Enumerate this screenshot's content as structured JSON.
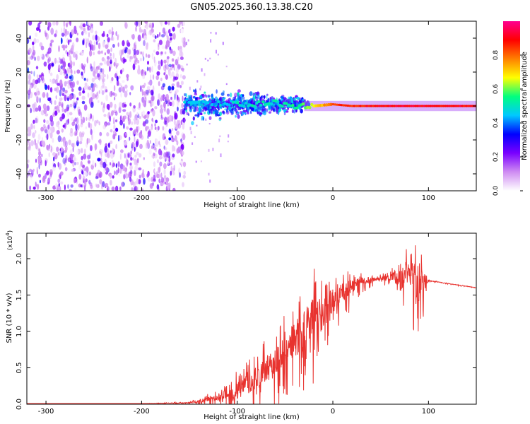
{
  "title": "GN05.2025.360.13.38.C20",
  "colors": {
    "line": "#e8332f",
    "background": "#ffffff",
    "axis": "#000000",
    "colormap": [
      "#ffffff",
      "#cf8cf2",
      "#7a00ff",
      "#0000ff",
      "#00c8ff",
      "#00ff7f",
      "#ffff00",
      "#ff8000",
      "#ff0000",
      "#ff0090"
    ]
  },
  "chart_data": [
    {
      "type": "heatmap",
      "name": "spectrogram",
      "xlabel": "Height of straight line (km)",
      "ylabel": "Frequency (Hz)",
      "xlim": [
        -320,
        150
      ],
      "ylim": [
        -50,
        50
      ],
      "xticks": [
        -300,
        -200,
        -100,
        0,
        100
      ],
      "xtick_labels": [
        "-300",
        "-200",
        "-100",
        "0",
        "100"
      ],
      "yticks": [
        -40,
        -20,
        0,
        20,
        40
      ],
      "ytick_labels": [
        "-40",
        "-20",
        "0",
        "20",
        "40"
      ],
      "noise_region": {
        "x": [
          -320,
          -155
        ],
        "y": [
          -50,
          50
        ],
        "amplitude": [
          0.0,
          0.3
        ]
      },
      "transition_region": {
        "x": [
          -155,
          -25
        ],
        "y": [
          -10,
          12
        ],
        "amplitude": [
          0.2,
          0.5
        ]
      },
      "ridge": {
        "description": "narrow band near 0 Hz",
        "x": [
          -155,
          -120,
          -90,
          -60,
          -40,
          -20,
          0,
          20,
          60,
          100,
          150
        ],
        "freq": [
          3,
          2,
          1,
          2,
          0,
          0,
          1,
          0,
          0,
          0,
          0
        ],
        "amplitude": [
          0.45,
          0.45,
          0.5,
          0.5,
          0.55,
          0.65,
          0.85,
          0.85,
          0.9,
          0.9,
          0.9
        ]
      },
      "colorbar": {
        "label": "Normalized spectral amplitude",
        "range": [
          0,
          1
        ],
        "ticks": [
          0.0,
          0.2,
          0.4,
          0.6,
          0.8
        ],
        "tick_labels": [
          "0.0",
          "0.2",
          "0.4",
          "0.6",
          "0.8"
        ]
      }
    },
    {
      "type": "line",
      "name": "snr",
      "xlabel": "Height of straight line (km)",
      "ylabel": "SNR (10 * v/v)",
      "scale_label": "(x10",
      "scale_exponent": "4",
      "xlim": [
        -320,
        150
      ],
      "ylim": [
        0,
        2.35
      ],
      "xticks": [
        -300,
        -200,
        -100,
        0,
        100
      ],
      "xtick_labels": [
        "-300",
        "-200",
        "-100",
        "0",
        "100"
      ],
      "yticks": [
        0.0,
        0.5,
        1.0,
        1.5,
        2.0
      ],
      "ytick_labels": [
        "0.0",
        "0.5",
        "1.0",
        "1.5",
        "2.0"
      ],
      "series": [
        {
          "name": "SNR",
          "x": [
            -320,
            -250,
            -200,
            -150,
            -140,
            -120,
            -100,
            -80,
            -60,
            -40,
            -30,
            -20,
            -10,
            0,
            10,
            20,
            30,
            40,
            50,
            60,
            70,
            80,
            90,
            100,
            110,
            130,
            150
          ],
          "y": [
            0.01,
            0.01,
            0.01,
            0.02,
            0.05,
            0.1,
            0.2,
            0.4,
            0.6,
            0.95,
            1.05,
            1.2,
            1.3,
            1.45,
            1.55,
            1.65,
            1.7,
            1.72,
            1.74,
            1.75,
            1.78,
            1.8,
            1.78,
            1.7,
            1.68,
            1.64,
            1.6
          ],
          "noise_envelope": [
            0,
            0,
            0,
            0.02,
            0.06,
            0.12,
            0.35,
            0.45,
            0.55,
            0.7,
            0.8,
            1.2,
            0.6,
            0.45,
            0.35,
            0.3,
            0.15,
            0.1,
            0.08,
            0.12,
            0.55,
            0.5,
            0.9,
            0.02,
            0.01,
            0.01,
            0.01
          ]
        }
      ]
    }
  ]
}
